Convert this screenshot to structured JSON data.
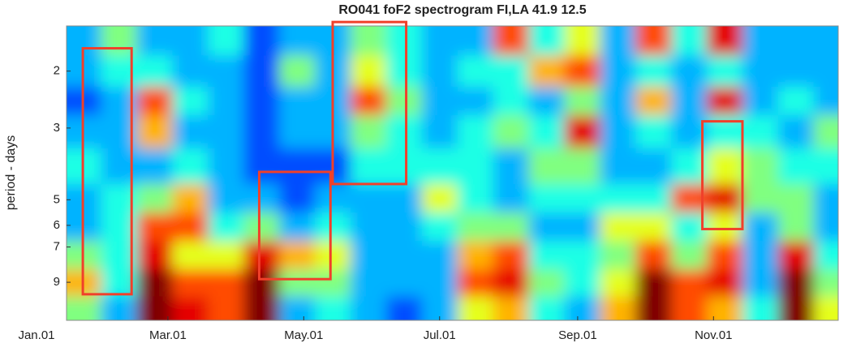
{
  "chart_data": {
    "type": "heatmap",
    "title": "RO041 foF2 spectrogram  FI,LA  41.9 12.5",
    "ylabel": "period - days",
    "y_scale": "log",
    "colormap": "jet",
    "clim": [
      0,
      10
    ],
    "xlim": [
      0,
      360
    ],
    "ylim": [
      1.45,
      11.8
    ],
    "xticks": [
      {
        "value": 0,
        "label": "Jan.01"
      },
      {
        "value": 59,
        "label": "Mar.01"
      },
      {
        "value": 120,
        "label": "May.01"
      },
      {
        "value": 181,
        "label": "Jul.01"
      },
      {
        "value": 243,
        "label": "Sep.01"
      },
      {
        "value": 304,
        "label": "Nov.01"
      }
    ],
    "yticks": [
      2,
      3,
      5,
      6,
      7,
      9
    ],
    "x": [
      21,
      37,
      53,
      69,
      85,
      101,
      117,
      133,
      149,
      165,
      181,
      197,
      213,
      229,
      245,
      261,
      277,
      293,
      309,
      325,
      341,
      357
    ],
    "y": [
      1.6,
      2,
      2.5,
      3,
      4,
      5,
      6,
      7.5,
      9,
      11
    ],
    "z": [
      [
        3,
        5,
        3,
        3,
        4,
        2,
        3,
        3,
        5,
        4,
        3,
        3,
        8,
        4,
        6,
        3,
        8,
        4,
        9,
        3,
        3,
        3
      ],
      [
        3,
        4,
        4,
        3,
        3,
        2,
        5,
        3,
        6,
        4,
        3,
        4,
        4,
        7,
        8,
        3,
        4,
        3,
        4,
        3,
        3,
        3
      ],
      [
        2,
        3,
        8,
        4,
        3,
        2,
        3,
        3,
        8,
        5,
        3,
        3,
        4,
        3,
        5,
        3,
        7,
        3,
        9,
        3,
        4,
        3
      ],
      [
        3,
        3,
        7,
        3,
        3,
        2,
        3,
        3,
        5,
        4,
        3,
        4,
        5,
        4,
        9,
        3,
        4,
        3,
        4,
        4,
        3,
        5
      ],
      [
        4,
        3,
        3,
        4,
        3,
        2,
        2,
        2,
        4,
        4,
        4,
        4,
        3,
        5,
        5,
        3,
        3,
        4,
        6,
        5,
        4,
        4
      ],
      [
        3,
        4,
        5,
        7,
        3,
        3,
        2,
        3,
        3,
        3,
        6,
        4,
        3,
        4,
        4,
        4,
        4,
        8,
        9,
        5,
        5,
        3
      ],
      [
        3,
        4,
        8,
        8,
        4,
        5,
        3,
        4,
        3,
        3,
        4,
        5,
        5,
        3,
        3,
        6,
        6,
        4,
        6,
        3,
        5,
        3
      ],
      [
        5,
        4,
        9,
        6,
        6,
        9,
        7,
        6,
        3,
        3,
        3,
        7,
        8,
        4,
        4,
        5,
        8,
        5,
        8,
        3,
        9,
        4
      ],
      [
        7,
        4,
        10,
        8,
        8,
        10,
        5,
        5,
        3,
        3,
        3,
        8,
        9,
        5,
        4,
        6,
        10,
        8,
        9,
        3,
        10,
        5
      ],
      [
        5,
        3,
        10,
        9,
        8,
        10,
        3,
        4,
        3,
        2,
        3,
        6,
        7,
        4,
        3,
        7,
        10,
        8,
        7,
        4,
        10,
        6
      ]
    ],
    "box_color": "#f0402a",
    "boxes": [
      {
        "x": [
          20.8,
          42.7
        ],
        "y": [
          1.7,
          9.8
        ]
      },
      {
        "x": [
          100,
          132
        ],
        "y": [
          4.1,
          8.8
        ]
      },
      {
        "x": [
          133,
          166
        ],
        "y": [
          1.41,
          4.47
        ]
      },
      {
        "x": [
          299,
          317
        ],
        "y": [
          2.86,
          6.16
        ]
      }
    ]
  }
}
